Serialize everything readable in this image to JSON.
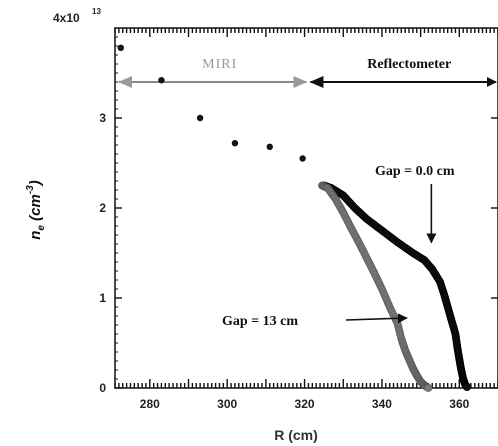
{
  "chart_data": {
    "type": "scatter",
    "xlabel": "R (cm)",
    "ylabel_main": "n",
    "ylabel_sub": "e",
    "ylabel_unit": "(cm",
    "ylabel_unit_exp": "-3",
    "ylabel_unit_close": ")",
    "xlim": [
      271,
      370
    ],
    "ylim": [
      0,
      4
    ],
    "x_ticks": [
      280,
      300,
      320,
      340,
      360
    ],
    "y_ticks": [
      {
        "value": 0,
        "label": "0"
      },
      {
        "value": 1,
        "label": "1"
      },
      {
        "value": 2,
        "label": "2"
      },
      {
        "value": 3,
        "label": "3"
      }
    ],
    "y_top_label": "4x10",
    "y_top_exponent": "13",
    "regions": [
      {
        "label": "MIRI",
        "from": 271,
        "to": 321
      },
      {
        "label": "Reflectometer",
        "from": 321,
        "to": 370
      }
    ],
    "region_y": 3.4,
    "annotations": [
      {
        "text": "Gap = 0.0 cm",
        "arrow_to": [
          352,
          1.55
        ]
      },
      {
        "text": "Gap = 13 cm",
        "arrow_to": [
          348,
          0.8
        ]
      }
    ],
    "series": [
      {
        "name": "MIRI",
        "x": [
          272.5,
          283,
          293,
          302,
          311,
          319.5
        ],
        "y": [
          3.78,
          3.42,
          3.0,
          2.72,
          2.68,
          2.55
        ]
      },
      {
        "name": "Gap = 0.0 cm",
        "x": [
          325,
          327,
          330,
          333,
          336,
          340,
          344,
          348,
          351,
          353,
          355,
          356,
          357,
          358,
          359,
          359.5,
          360,
          360.5,
          361,
          361.5,
          362
        ],
        "y": [
          2.25,
          2.22,
          2.14,
          2.0,
          1.88,
          1.75,
          1.62,
          1.5,
          1.42,
          1.32,
          1.18,
          1.05,
          0.9,
          0.75,
          0.6,
          0.45,
          0.32,
          0.2,
          0.1,
          0.04,
          0.01
        ]
      },
      {
        "name": "Gap = 13 cm",
        "x": [
          324.5,
          326,
          328,
          330,
          332,
          334,
          336,
          338,
          340,
          342,
          344,
          345,
          346,
          347,
          348,
          349,
          350,
          351,
          352
        ],
        "y": [
          2.25,
          2.22,
          2.1,
          1.95,
          1.78,
          1.62,
          1.45,
          1.28,
          1.1,
          0.9,
          0.72,
          0.55,
          0.42,
          0.32,
          0.22,
          0.14,
          0.07,
          0.03,
          0.0
        ]
      }
    ]
  }
}
